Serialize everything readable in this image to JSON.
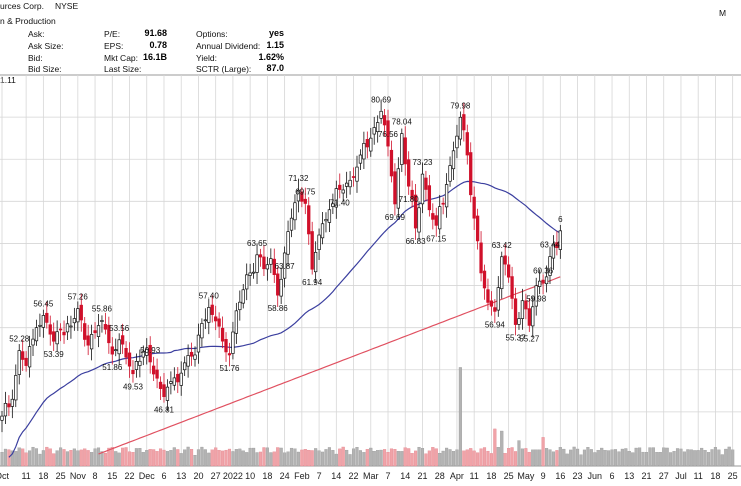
{
  "header": {
    "company": "urces Corp.",
    "exchange": "NYSE",
    "industry": "n & Production",
    "corner_label": "M",
    "left_labels": [
      "Ask:",
      "Ask Size:",
      "Bid:",
      "Bid Size:"
    ],
    "stats": [
      {
        "label": "P/E:",
        "value": "91.68"
      },
      {
        "label": "EPS:",
        "value": "0.78"
      },
      {
        "label": "Mkt Cap:",
        "value": "16.1B"
      },
      {
        "label": "Last Size:",
        "value": ""
      }
    ],
    "stats2": [
      {
        "label": "Options:",
        "value": "yes"
      },
      {
        "label": "Annual Dividend:",
        "value": "1.15"
      },
      {
        "label": "Yield:",
        "value": "1.62%"
      },
      {
        "label": "SCTR (Large):",
        "value": "87.0"
      }
    ],
    "price_fragment": "1.11"
  },
  "chart_data": {
    "type": "candlestick",
    "ylim": [
      40,
      85
    ],
    "x_axis_labels": [
      {
        "label": "Oct",
        "x": 0
      },
      {
        "label": "11",
        "x": 7
      },
      {
        "label": "18",
        "x": 12
      },
      {
        "label": "25",
        "x": 17
      },
      {
        "label": "Nov",
        "x": 22
      },
      {
        "label": "8",
        "x": 27
      },
      {
        "label": "15",
        "x": 32
      },
      {
        "label": "22",
        "x": 37
      },
      {
        "label": "Dec",
        "x": 42
      },
      {
        "label": "6",
        "x": 47
      },
      {
        "label": "13",
        "x": 52
      },
      {
        "label": "20",
        "x": 57
      },
      {
        "label": "27",
        "x": 62
      },
      {
        "label": "2022",
        "x": 67
      },
      {
        "label": "10",
        "x": 72
      },
      {
        "label": "18",
        "x": 77
      },
      {
        "label": "24",
        "x": 82
      },
      {
        "label": "Feb",
        "x": 87
      },
      {
        "label": "7",
        "x": 92
      },
      {
        "label": "14",
        "x": 97
      },
      {
        "label": "22",
        "x": 102
      },
      {
        "label": "Mar",
        "x": 107
      },
      {
        "label": "7",
        "x": 112
      },
      {
        "label": "14",
        "x": 117
      },
      {
        "label": "21",
        "x": 122
      },
      {
        "label": "28",
        "x": 127
      },
      {
        "label": "Apr",
        "x": 132
      },
      {
        "label": "11",
        "x": 137
      },
      {
        "label": "18",
        "x": 142
      },
      {
        "label": "25",
        "x": 147
      },
      {
        "label": "May",
        "x": 152
      },
      {
        "label": "9",
        "x": 157
      },
      {
        "label": "16",
        "x": 162
      },
      {
        "label": "23",
        "x": 167
      },
      {
        "label": "Jun",
        "x": 172
      },
      {
        "label": "6",
        "x": 177
      },
      {
        "label": "13",
        "x": 182
      },
      {
        "label": "21",
        "x": 187
      },
      {
        "label": "27",
        "x": 192
      },
      {
        "label": "Jul",
        "x": 197
      },
      {
        "label": "11",
        "x": 202
      },
      {
        "label": "18",
        "x": 207
      },
      {
        "label": "25",
        "x": 212
      }
    ],
    "anchors": [
      [
        0,
        44.5
      ],
      [
        3,
        46.5
      ],
      [
        5,
        52.28
      ],
      [
        7,
        50.5
      ],
      [
        10,
        55.0
      ],
      [
        12,
        56.45
      ],
      [
        15,
        53.39
      ],
      [
        17,
        54.8
      ],
      [
        20,
        55.2
      ],
      [
        22,
        57.26
      ],
      [
        24,
        53.6
      ],
      [
        27,
        54.4
      ],
      [
        29,
        55.86
      ],
      [
        32,
        51.86
      ],
      [
        34,
        53.56
      ],
      [
        36,
        51.5
      ],
      [
        38,
        49.53
      ],
      [
        39,
        51.0
      ],
      [
        41,
        52.2
      ],
      [
        43,
        50.93
      ],
      [
        45,
        49.0
      ],
      [
        47,
        46.81
      ],
      [
        49,
        48.6
      ],
      [
        52,
        49.6
      ],
      [
        54,
        51.7
      ],
      [
        56,
        51.76
      ],
      [
        58,
        55.5
      ],
      [
        60,
        57.4
      ],
      [
        62,
        55.8
      ],
      [
        64,
        53.4
      ],
      [
        66,
        51.76
      ],
      [
        68,
        57.0
      ],
      [
        70,
        59.5
      ],
      [
        72,
        61.5
      ],
      [
        74,
        63.65
      ],
      [
        76,
        62.0
      ],
      [
        78,
        63.2
      ],
      [
        80,
        58.86
      ],
      [
        82,
        63.87
      ],
      [
        84,
        68.0
      ],
      [
        86,
        71.32
      ],
      [
        88,
        69.75
      ],
      [
        90,
        61.94
      ],
      [
        92,
        66.0
      ],
      [
        95,
        69.0
      ],
      [
        98,
        71.4
      ],
      [
        101,
        72.5
      ],
      [
        104,
        75.5
      ],
      [
        107,
        77.5
      ],
      [
        110,
        80.69
      ],
      [
        112,
        76.56
      ],
      [
        114,
        69.69
      ],
      [
        116,
        78.04
      ],
      [
        118,
        71.8
      ],
      [
        120,
        66.83
      ],
      [
        122,
        73.23
      ],
      [
        124,
        69.0
      ],
      [
        126,
        67.15
      ],
      [
        129,
        72.0
      ],
      [
        131,
        76.0
      ],
      [
        133,
        79.98
      ],
      [
        135,
        75.5
      ],
      [
        137,
        68.0
      ],
      [
        139,
        61.5
      ],
      [
        141,
        58.0
      ],
      [
        143,
        56.94
      ],
      [
        145,
        63.42
      ],
      [
        147,
        61.0
      ],
      [
        149,
        55.37
      ],
      [
        151,
        58.2
      ],
      [
        153,
        55.27
      ],
      [
        155,
        59.98
      ],
      [
        157,
        60.36
      ],
      [
        159,
        63.44
      ],
      [
        161,
        64.5
      ],
      [
        162,
        66.5
      ]
    ],
    "price_labels": [
      {
        "text": "52.28",
        "x": 5,
        "y": 52.28,
        "pos": "above"
      },
      {
        "text": "56.45",
        "x": 12,
        "y": 56.45,
        "pos": "above"
      },
      {
        "text": "53.39",
        "x": 15,
        "y": 53.39,
        "pos": "below"
      },
      {
        "text": "57.26",
        "x": 22,
        "y": 57.26,
        "pos": "above"
      },
      {
        "text": "55.86",
        "x": 29,
        "y": 55.86,
        "pos": "above"
      },
      {
        "text": "51.86",
        "x": 32,
        "y": 51.86,
        "pos": "below"
      },
      {
        "text": "53.56",
        "x": 34,
        "y": 53.56,
        "pos": "above"
      },
      {
        "text": "49.53",
        "x": 38,
        "y": 49.53,
        "pos": "below"
      },
      {
        "text": "50.93",
        "x": 43,
        "y": 50.93,
        "pos": "above"
      },
      {
        "text": "46.81",
        "x": 47,
        "y": 46.81,
        "pos": "below"
      },
      {
        "text": "57.40",
        "x": 60,
        "y": 57.4,
        "pos": "above"
      },
      {
        "text": "51.76",
        "x": 66,
        "y": 51.76,
        "pos": "below"
      },
      {
        "text": "63.65",
        "x": 74,
        "y": 63.65,
        "pos": "above"
      },
      {
        "text": "58.86",
        "x": 80,
        "y": 58.86,
        "pos": "below"
      },
      {
        "text": "63.87",
        "x": 82,
        "y": 63.87,
        "pos": "below"
      },
      {
        "text": "71.32",
        "x": 86,
        "y": 71.32,
        "pos": "above"
      },
      {
        "text": "69.75",
        "x": 88,
        "y": 69.75,
        "pos": "above"
      },
      {
        "text": "61.94",
        "x": 90,
        "y": 61.94,
        "pos": "below"
      },
      {
        "text": "71.40",
        "x": 98,
        "y": 71.4,
        "pos": "below"
      },
      {
        "text": "80.69",
        "x": 110,
        "y": 80.69,
        "pos": "above"
      },
      {
        "text": "76.56",
        "x": 112,
        "y": 76.56,
        "pos": "above"
      },
      {
        "text": "69.69",
        "x": 114,
        "y": 69.69,
        "pos": "below"
      },
      {
        "text": "78.04",
        "x": 116,
        "y": 78.04,
        "pos": "above"
      },
      {
        "text": "71.80",
        "x": 118,
        "y": 71.8,
        "pos": "below"
      },
      {
        "text": "66.83",
        "x": 120,
        "y": 66.83,
        "pos": "below"
      },
      {
        "text": "73.23",
        "x": 122,
        "y": 73.23,
        "pos": "above"
      },
      {
        "text": "67.15",
        "x": 126,
        "y": 67.15,
        "pos": "below"
      },
      {
        "text": "79.98",
        "x": 133,
        "y": 79.98,
        "pos": "above"
      },
      {
        "text": "56.94",
        "x": 143,
        "y": 56.94,
        "pos": "below"
      },
      {
        "text": "63.42",
        "x": 145,
        "y": 63.42,
        "pos": "above"
      },
      {
        "text": "55.37",
        "x": 149,
        "y": 55.37,
        "pos": "below"
      },
      {
        "text": "55.27",
        "x": 153,
        "y": 55.27,
        "pos": "below"
      },
      {
        "text": "59.98",
        "x": 155,
        "y": 59.98,
        "pos": "below"
      },
      {
        "text": "60.36",
        "x": 157,
        "y": 60.36,
        "pos": "above"
      },
      {
        "text": "63.44",
        "x": 159,
        "y": 63.44,
        "pos": "above"
      },
      {
        "text": "6",
        "x": 162,
        "y": 66.5,
        "pos": "above"
      }
    ],
    "volume_spikes": [
      {
        "x": 133,
        "v": 0.93
      },
      {
        "x": 143,
        "v": 0.35
      },
      {
        "x": 145,
        "v": 0.33
      },
      {
        "x": 157,
        "v": 0.27
      },
      {
        "x": 150,
        "v": 0.24
      }
    ],
    "colors": {
      "up": "#111111",
      "down": "#d0102a",
      "ma_short": "#3b3f9f",
      "ma_long": "#e05060",
      "volume": "#b3b3b3",
      "volume_down": "#f0a3a8",
      "grid": "#d6d6d6"
    }
  }
}
